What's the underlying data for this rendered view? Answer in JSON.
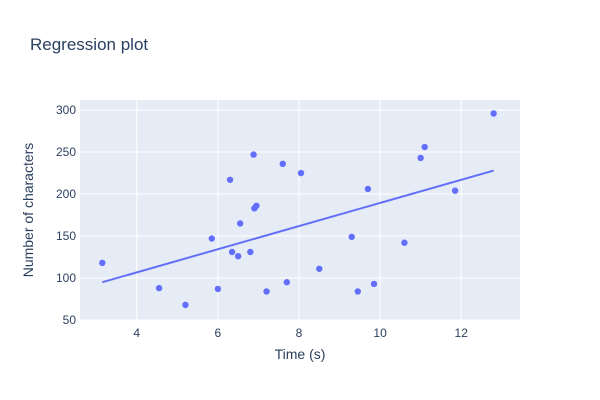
{
  "chart_data": {
    "type": "scatter",
    "title": "Regression plot",
    "xlabel": "Time (s)",
    "ylabel": "Number of characters",
    "xlim": [
      2.6,
      13.45
    ],
    "ylim": [
      50,
      312
    ],
    "x_ticks": [
      4,
      6,
      8,
      10,
      12
    ],
    "y_ticks": [
      50,
      100,
      150,
      200,
      250,
      300
    ],
    "grid": true,
    "legend": "none",
    "colors": {
      "plot_bg": "#e5ecf6",
      "grid": "#ffffff",
      "marker": "#636efa",
      "line": "#636efa",
      "text": "#2a3f5f"
    },
    "series": [
      {
        "type": "scatter",
        "x": [
          3.15,
          4.55,
          5.2,
          5.85,
          6.0,
          6.3,
          6.35,
          6.5,
          6.55,
          6.8,
          6.88,
          6.9,
          6.95,
          7.2,
          7.6,
          7.7,
          8.05,
          8.5,
          9.3,
          9.45,
          9.7,
          9.85,
          10.6,
          11.0,
          11.1,
          11.85,
          12.8
        ],
        "y": [
          118,
          88,
          68,
          147,
          87,
          217,
          131,
          126,
          165,
          131,
          247,
          183,
          186,
          84,
          236,
          95,
          225,
          111,
          149,
          84,
          206,
          93,
          142,
          243,
          256,
          204,
          296
        ]
      },
      {
        "type": "line",
        "x": [
          3.15,
          12.8
        ],
        "y": [
          95,
          228
        ]
      }
    ]
  }
}
